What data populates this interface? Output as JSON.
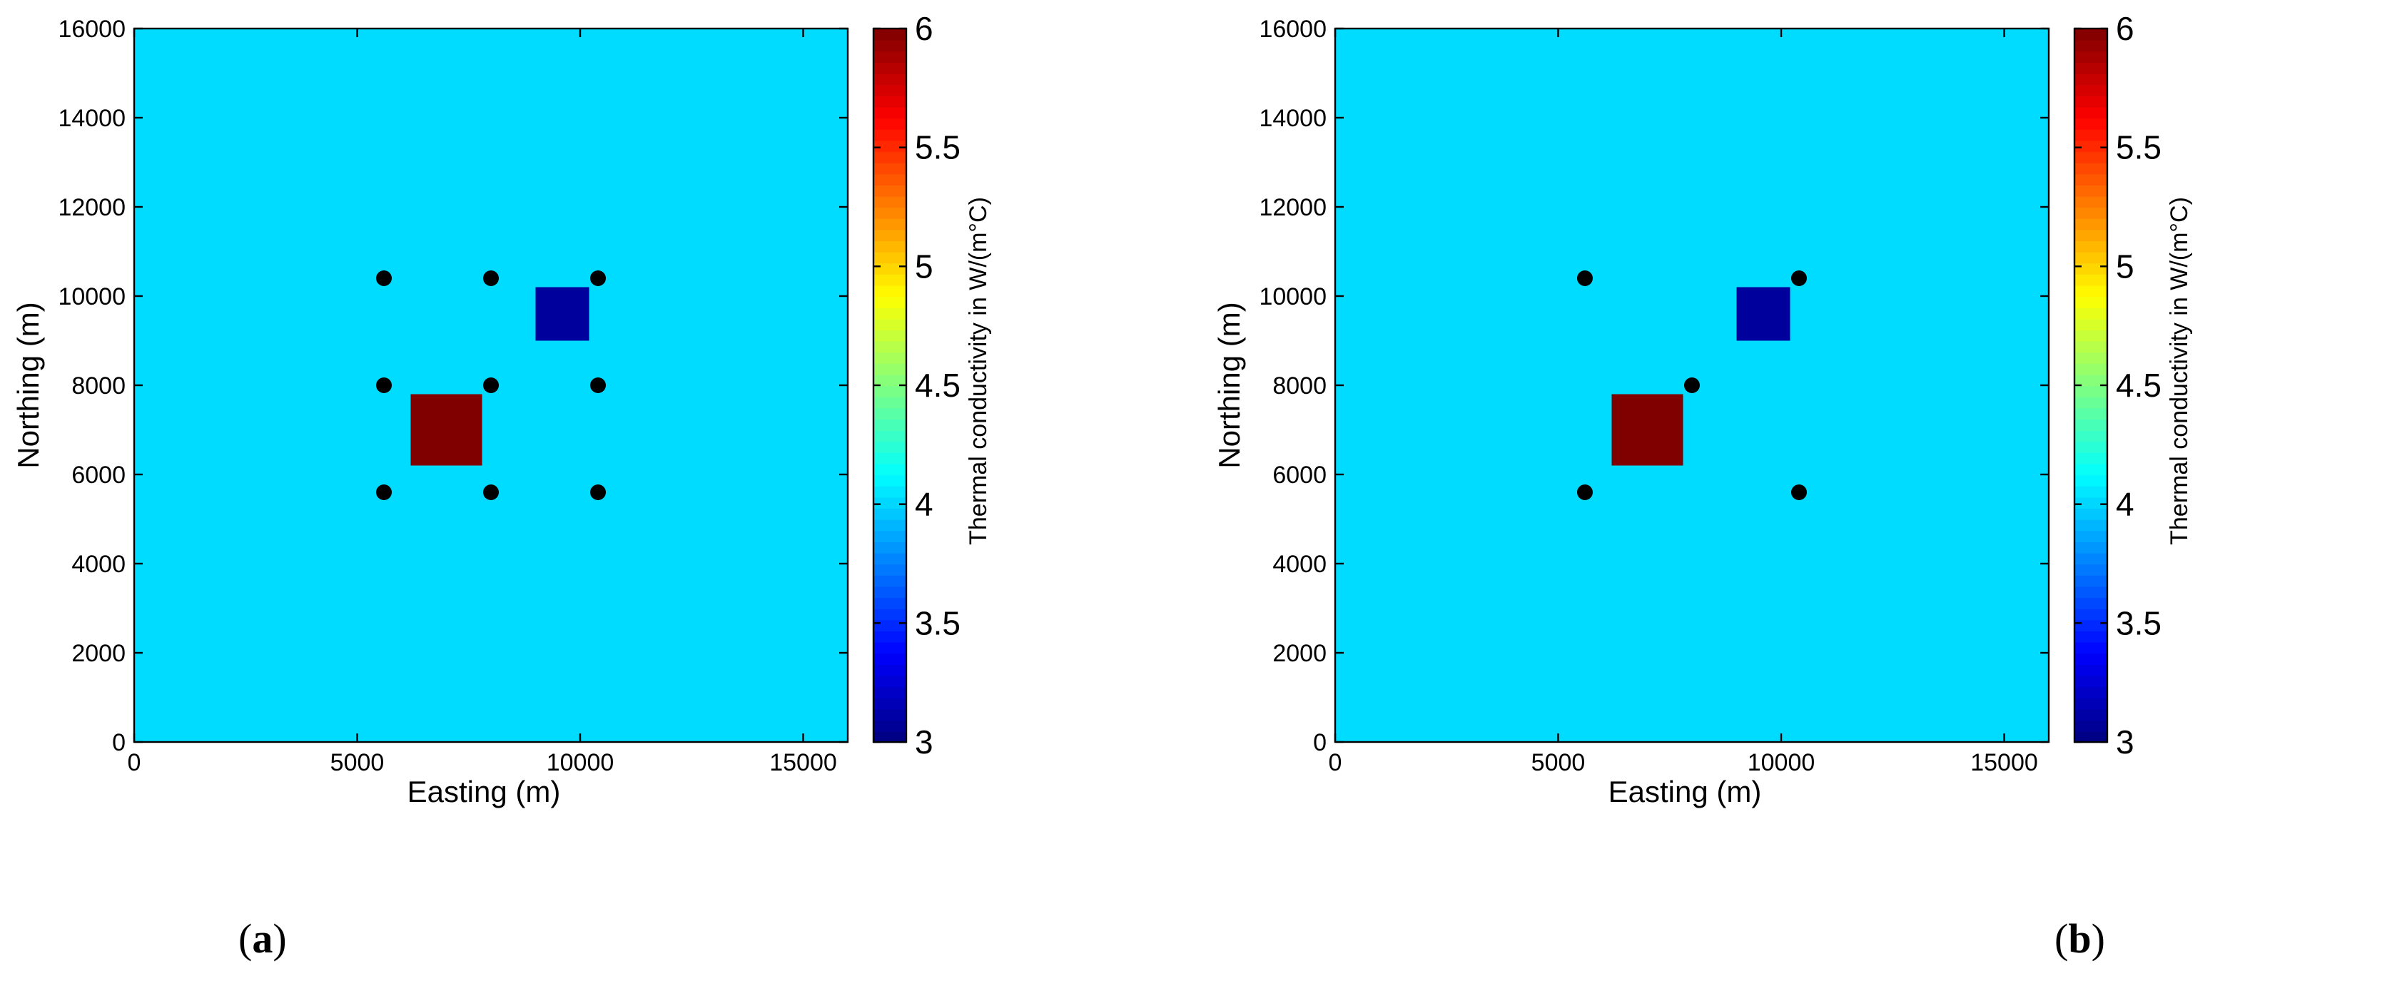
{
  "chart_data": [
    {
      "type": "heatmap",
      "panel_label": "a",
      "xlabel": "Easting (m)",
      "ylabel": "Northing (m)",
      "xlim": [
        0,
        16000
      ],
      "ylim": [
        0,
        16000
      ],
      "xticks": [
        0,
        5000,
        10000,
        15000
      ],
      "yticks": [
        0,
        2000,
        4000,
        6000,
        8000,
        10000,
        12000,
        14000,
        16000
      ],
      "background_value": 4.2,
      "background_color": "#00dcff",
      "anomalies": [
        {
          "name": "high",
          "value": 6,
          "x_range": [
            6200,
            7800
          ],
          "y_range": [
            6200,
            7800
          ],
          "color": "#800000"
        },
        {
          "name": "low",
          "value": 3,
          "x_range": [
            9000,
            10200
          ],
          "y_range": [
            9000,
            10200
          ],
          "color": "#00009c"
        }
      ],
      "wells": [
        [
          5600,
          10400
        ],
        [
          8000,
          10400
        ],
        [
          10400,
          10400
        ],
        [
          5600,
          8000
        ],
        [
          8000,
          8000
        ],
        [
          10400,
          8000
        ],
        [
          5600,
          5600
        ],
        [
          8000,
          5600
        ],
        [
          10400,
          5600
        ]
      ],
      "colorbar": {
        "label": "Thermal conductivity in W/(m°C)",
        "range": [
          3,
          6
        ],
        "ticks": [
          3,
          3.5,
          4,
          4.5,
          5,
          5.5,
          6
        ]
      }
    },
    {
      "type": "heatmap",
      "panel_label": "b",
      "xlabel": "Easting (m)",
      "ylabel": "Northing (m)",
      "xlim": [
        0,
        16000
      ],
      "ylim": [
        0,
        16000
      ],
      "xticks": [
        0,
        5000,
        10000,
        15000
      ],
      "yticks": [
        0,
        2000,
        4000,
        6000,
        8000,
        10000,
        12000,
        14000,
        16000
      ],
      "background_value": 4.2,
      "background_color": "#00dcff",
      "anomalies": [
        {
          "name": "high",
          "value": 6,
          "x_range": [
            6200,
            7800
          ],
          "y_range": [
            6200,
            7800
          ],
          "color": "#800000"
        },
        {
          "name": "low",
          "value": 3,
          "x_range": [
            9000,
            10200
          ],
          "y_range": [
            9000,
            10200
          ],
          "color": "#00009c"
        }
      ],
      "wells": [
        [
          5600,
          10400
        ],
        [
          10400,
          10400
        ],
        [
          8000,
          8000
        ],
        [
          5600,
          5600
        ],
        [
          10400,
          5600
        ]
      ],
      "colorbar": {
        "label": "Thermal conductivity in W/(m°C)",
        "range": [
          3,
          6
        ],
        "ticks": [
          3,
          3.5,
          4,
          4.5,
          5,
          5.5,
          6
        ]
      }
    }
  ]
}
